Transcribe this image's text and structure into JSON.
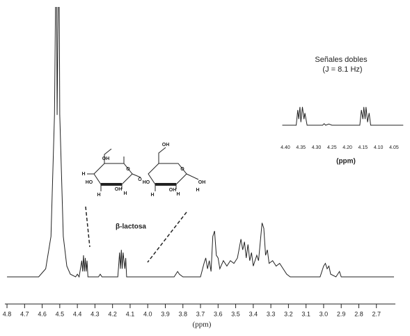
{
  "chart_data": [
    {
      "type": "line",
      "x_label": "(ppm)",
      "annotation": "β-lactosa",
      "xlim": [
        4.82,
        2.6
      ],
      "ylim": [
        0,
        100
      ],
      "color": "#222222",
      "xticks": [
        4.8,
        4.7,
        4.6,
        4.5,
        4.4,
        4.3,
        4.2,
        4.1,
        {
          "value": 4.0,
          "label": "4.0"
        },
        3.9,
        3.8,
        3.7,
        3.6,
        3.5,
        3.4,
        3.3,
        3.2,
        3.1,
        {
          "value": 3.0,
          "label": "3.0"
        },
        2.9,
        2.8,
        2.7
      ],
      "x": [
        4.8,
        4.62,
        4.58,
        4.55,
        4.53,
        4.52,
        4.515,
        4.505,
        4.5,
        4.48,
        4.46,
        4.44,
        4.41,
        4.4,
        4.39,
        4.375,
        4.37,
        4.365,
        4.36,
        4.355,
        4.35,
        4.345,
        4.34,
        4.28,
        4.27,
        4.26,
        4.17,
        4.16,
        4.155,
        4.15,
        4.145,
        4.14,
        4.13,
        4.125,
        4.12,
        3.85,
        3.84,
        3.83,
        3.82,
        3.8,
        3.7,
        3.68,
        3.67,
        3.66,
        3.65,
        3.64,
        3.63,
        3.62,
        3.61,
        3.6,
        3.59,
        3.57,
        3.55,
        3.53,
        3.51,
        3.49,
        3.47,
        3.46,
        3.45,
        3.44,
        3.43,
        3.42,
        3.41,
        3.4,
        3.38,
        3.37,
        3.35,
        3.34,
        3.33,
        3.32,
        3.31,
        3.29,
        3.27,
        3.25,
        3.23,
        3.21,
        3.19,
        3.02,
        3.0,
        2.99,
        2.98,
        2.97,
        2.96,
        2.93,
        2.91,
        2.9,
        2.6
      ],
      "values": [
        0,
        0,
        3,
        15,
        60,
        130,
        60,
        130,
        60,
        15,
        4,
        1,
        0,
        1,
        0,
        6,
        2,
        8,
        2,
        7,
        2,
        6,
        0,
        0,
        1,
        0,
        0,
        9,
        3,
        10,
        3,
        9,
        3,
        7,
        0,
        0,
        1,
        2,
        1,
        0,
        0,
        5,
        7,
        3,
        6,
        2,
        15,
        17,
        8,
        7,
        3,
        6,
        4,
        6,
        5,
        7,
        14,
        10,
        13,
        7,
        12,
        6,
        9,
        4,
        8,
        6,
        20,
        18,
        8,
        10,
        5,
        6,
        4,
        5,
        3,
        1,
        0,
        0,
        4,
        5,
        3,
        4,
        1,
        0,
        2,
        0,
        0
      ]
    },
    {
      "type": "line",
      "title": "Señales dobles",
      "subtitle": "(J = 8.1 Hz)",
      "x_label": "(ppm)",
      "xlim": [
        4.41,
        4.02
      ],
      "ylim": [
        0,
        8
      ],
      "color": "#222222",
      "xticks": [
        {
          "value": 4.4,
          "label": "4.40"
        },
        4.35,
        {
          "value": 4.3,
          "label": "4.30"
        },
        4.25,
        {
          "value": 4.2,
          "label": "4.20"
        },
        4.15,
        {
          "value": 4.1,
          "label": "4.10"
        },
        4.05
      ],
      "x": [
        4.41,
        4.365,
        4.36,
        4.357,
        4.353,
        4.35,
        4.345,
        4.34,
        4.337,
        4.33,
        4.28,
        4.275,
        4.27,
        4.26,
        4.25,
        4.16,
        4.155,
        4.15,
        4.147,
        4.143,
        4.14,
        4.135,
        4.13,
        4.125,
        4.02
      ],
      "values": [
        0,
        0,
        5,
        2,
        6,
        1,
        6,
        2,
        4,
        0,
        0,
        0.5,
        0,
        0.4,
        0,
        0,
        5,
        2,
        6,
        2,
        6,
        1,
        4,
        0,
        0
      ]
    }
  ],
  "structure": {
    "labels": [
      "OH",
      "OH",
      "HO",
      "HO",
      "OH",
      "OH",
      "OH",
      "O",
      "O",
      "O",
      "H",
      "H",
      "H",
      "H",
      "H",
      "H"
    ]
  }
}
